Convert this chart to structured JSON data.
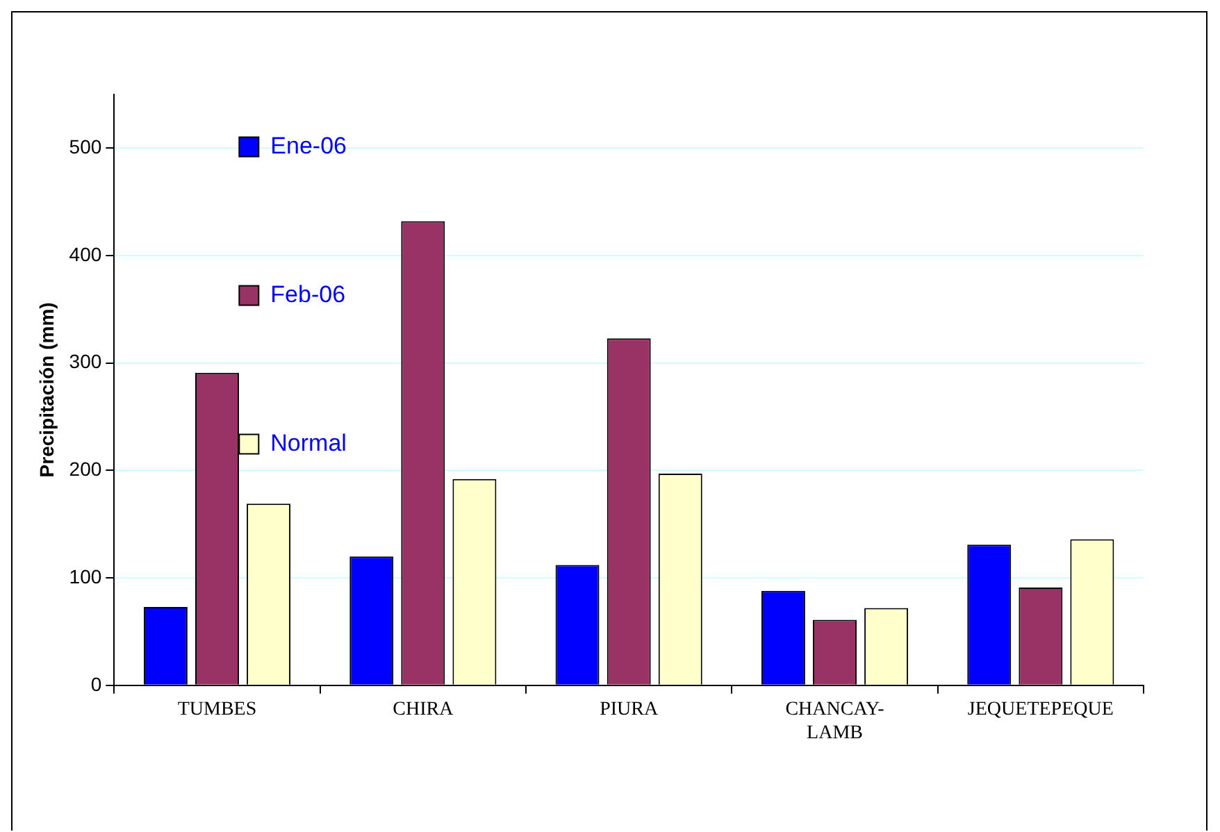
{
  "chart_data": {
    "type": "bar",
    "ylabel": "Precipitación (mm)",
    "categories": [
      "TUMBES",
      "CHIRA",
      "PIURA",
      "CHANCAY-LAMB",
      "JEQUETEPEQUE"
    ],
    "series": [
      {
        "name": "Ene-06",
        "color": "#0000ff",
        "values": [
          73,
          120,
          112,
          88,
          131
        ]
      },
      {
        "name": "Feb-06",
        "color": "#993366",
        "values": [
          291,
          432,
          323,
          61,
          91
        ]
      },
      {
        "name": "Normal",
        "color": "#ffffcc",
        "values": [
          169,
          192,
          197,
          72,
          136
        ]
      }
    ],
    "ylim": [
      0,
      550
    ],
    "yticks": [
      0,
      100,
      200,
      300,
      400,
      500
    ],
    "grid": "y",
    "legend": "top"
  }
}
